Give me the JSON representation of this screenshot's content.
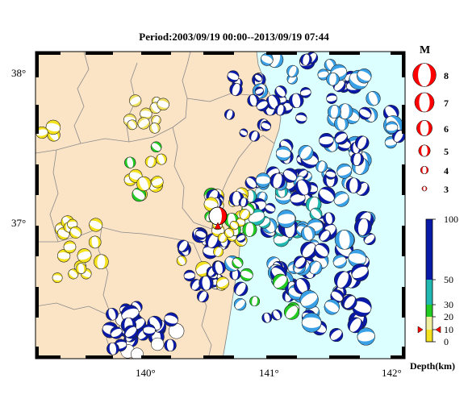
{
  "title": "Period:2003/09/19 00:00--2013/09/19 07:44",
  "map": {
    "lat_labels": [
      "38°",
      "37°"
    ],
    "lon_labels": [
      "140°",
      "141°",
      "142°"
    ]
  },
  "magnitude_legend": {
    "heading": "M",
    "items": [
      {
        "label": "8",
        "value": 8
      },
      {
        "label": "7",
        "value": 7
      },
      {
        "label": "6",
        "value": 6
      },
      {
        "label": "5",
        "value": 5
      },
      {
        "label": "4",
        "value": 4
      },
      {
        "label": "3",
        "value": 3
      }
    ]
  },
  "depth_legend": {
    "unit_label": "Depth(km)",
    "ticks": [
      "100",
      "50",
      "30",
      "20",
      "10",
      "0"
    ],
    "bands": [
      {
        "from": 0,
        "to": 10,
        "color": "#f5e21e"
      },
      {
        "from": 10,
        "to": 20,
        "color": "#f0f0a0"
      },
      {
        "from": 20,
        "to": 30,
        "color": "#22cc22"
      },
      {
        "from": 30,
        "to": 50,
        "color": "#20b8b0"
      },
      {
        "from": 50,
        "to": 100,
        "color": "#3aa0e6"
      },
      {
        "from": 100,
        "to": 999,
        "color": "#0a1aa8"
      }
    ]
  },
  "colors": {
    "land": "#fbe3c6",
    "sea": "#dcffff",
    "deep": "#0a1aa8",
    "mid": "#3aa0e6",
    "green": "#22cc22",
    "yellow": "#f5e21e",
    "mainshock": "#ff0000"
  }
}
